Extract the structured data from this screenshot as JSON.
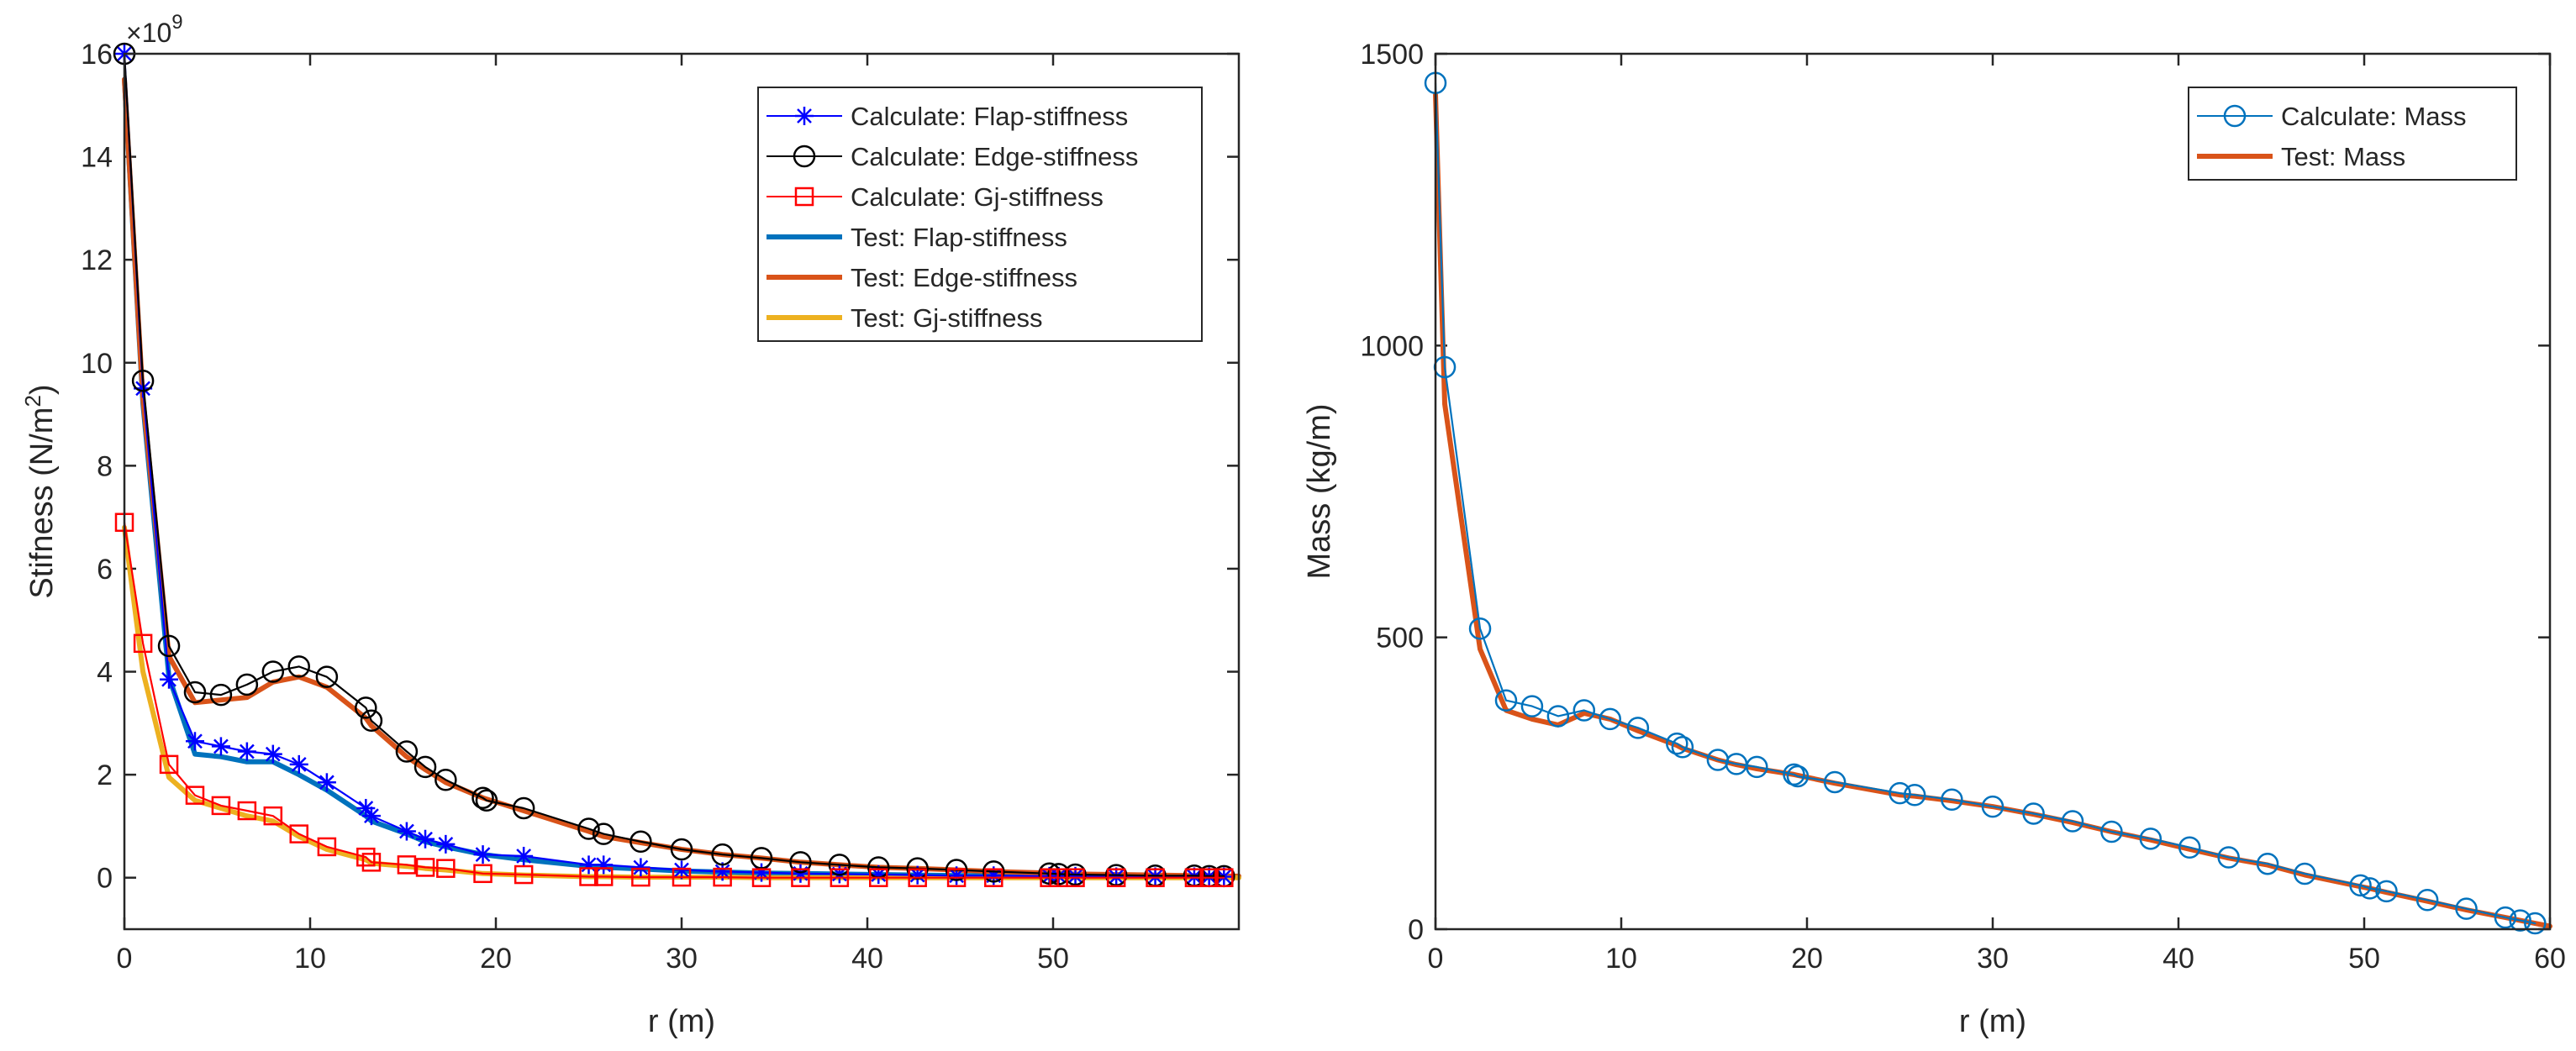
{
  "chart_data": [
    {
      "type": "line",
      "xlabel": "r (m)",
      "ylabel": "Stifness (N/m",
      "ylabel_superscript": "2",
      "ylabel_suffix": ")",
      "exponent_label": "×10",
      "exponent_power": "9",
      "xlim": [
        0,
        60
      ],
      "ylim": [
        -1,
        16
      ],
      "xticks": [
        0,
        10,
        20,
        30,
        40,
        50
      ],
      "yticks": [
        0,
        2,
        4,
        6,
        8,
        10,
        12,
        14,
        16
      ],
      "xtick_labels": [
        "0",
        "10",
        "20",
        "30",
        "40",
        "50"
      ],
      "ytick_labels": [
        "0",
        "2",
        "4",
        "6",
        "8",
        "10",
        "12",
        "14",
        "16"
      ],
      "legend_position": "top-right",
      "series": [
        {
          "name": "Calculate: Flap-stiffness",
          "color": "#0000ff",
          "marker": "asterisk",
          "line": "thin",
          "x": [
            0,
            1,
            2.4,
            3.8,
            5.2,
            6.6,
            8,
            9.4,
            10.9,
            13,
            13.3,
            15.2,
            16.2,
            17.3,
            19.3,
            21.5,
            25,
            25.8,
            27.8,
            30,
            32.2,
            34.3,
            36.4,
            38.5,
            40.6,
            42.7,
            44.8,
            46.8,
            49.8,
            50.3,
            51.2,
            53.4,
            55.5,
            57.6,
            58.4,
            59.2
          ],
          "y": [
            16,
            9.5,
            3.85,
            2.65,
            2.55,
            2.45,
            2.4,
            2.2,
            1.85,
            1.35,
            1.2,
            0.9,
            0.75,
            0.65,
            0.45,
            0.42,
            0.25,
            0.25,
            0.2,
            0.15,
            0.12,
            0.1,
            0.08,
            0.07,
            0.06,
            0.05,
            0.04,
            0.04,
            0.03,
            0.03,
            0.03,
            0.02,
            0.02,
            0.02,
            0.02,
            0.02
          ]
        },
        {
          "name": "Calculate: Edge-stiffness",
          "color": "#000000",
          "marker": "circle",
          "line": "thin",
          "x": [
            0,
            1,
            2.4,
            3.8,
            5.2,
            6.6,
            8,
            9.4,
            10.9,
            13,
            13.3,
            15.2,
            16.2,
            17.3,
            19.3,
            19.5,
            21.5,
            25,
            25.8,
            27.8,
            30,
            32.2,
            34.3,
            36.4,
            38.5,
            40.6,
            42.7,
            44.8,
            46.8,
            49.8,
            50.3,
            51.2,
            53.4,
            55.5,
            57.6,
            58.4,
            59.2
          ],
          "y": [
            16,
            9.65,
            4.5,
            3.6,
            3.55,
            3.75,
            4.0,
            4.1,
            3.9,
            3.3,
            3.05,
            2.45,
            2.15,
            1.9,
            1.55,
            1.5,
            1.35,
            0.95,
            0.85,
            0.7,
            0.55,
            0.45,
            0.38,
            0.3,
            0.25,
            0.2,
            0.18,
            0.15,
            0.12,
            0.08,
            0.07,
            0.06,
            0.05,
            0.04,
            0.04,
            0.03,
            0.03
          ]
        },
        {
          "name": "Calculate: Gj-stiffness",
          "color": "#ff0000",
          "marker": "square",
          "line": "thin",
          "x": [
            0,
            1,
            2.4,
            3.8,
            5.2,
            6.6,
            8,
            9.4,
            10.9,
            13,
            13.3,
            15.2,
            16.2,
            17.3,
            19.3,
            21.5,
            25,
            25.8,
            27.8,
            30,
            32.2,
            34.3,
            36.4,
            38.5,
            40.6,
            42.7,
            44.8,
            46.8,
            49.8,
            50.3,
            51.2,
            53.4,
            55.5,
            57.6,
            58.4,
            59.2
          ],
          "y": [
            6.9,
            4.55,
            2.2,
            1.6,
            1.4,
            1.3,
            1.2,
            0.85,
            0.6,
            0.4,
            0.3,
            0.25,
            0.2,
            0.18,
            0.08,
            0.06,
            0.02,
            0.02,
            0.01,
            0.01,
            0.01,
            0.0,
            0.0,
            0.0,
            0.0,
            0.0,
            0.0,
            0.0,
            0.0,
            0.0,
            0.0,
            0.0,
            0.0,
            0.0,
            0.0,
            0.0
          ]
        },
        {
          "name": "Test: Flap-stiffness",
          "color": "#0072bd",
          "marker": "none",
          "line": "thick",
          "x": [
            0,
            1,
            2.4,
            3.8,
            5.2,
            6.6,
            8,
            9.4,
            10.9,
            13,
            13.3,
            15.2,
            16.2,
            17.3,
            19.3,
            21.5,
            25,
            25.8,
            27.8,
            30,
            32.2,
            34.3,
            36.4,
            38.5,
            40.6,
            42.7,
            44.8,
            46.8,
            49.8,
            50.3,
            51.2,
            53.4,
            55.5,
            57.6,
            58.4,
            59.2,
            60
          ],
          "y": [
            15.5,
            9.2,
            3.9,
            2.4,
            2.35,
            2.25,
            2.25,
            2.0,
            1.7,
            1.2,
            1.1,
            0.85,
            0.7,
            0.6,
            0.45,
            0.35,
            0.22,
            0.2,
            0.17,
            0.13,
            0.11,
            0.09,
            0.08,
            0.07,
            0.06,
            0.05,
            0.04,
            0.04,
            0.03,
            0.03,
            0.03,
            0.02,
            0.02,
            0.02,
            0.02,
            0.02,
            0.02
          ]
        },
        {
          "name": "Test: Edge-stiffness",
          "color": "#d95319",
          "marker": "none",
          "line": "thick",
          "x": [
            0,
            1,
            2.4,
            3.8,
            5.2,
            6.6,
            8,
            9.4,
            10.9,
            13,
            13.3,
            15.2,
            16.2,
            17.3,
            19.3,
            21.5,
            25,
            25.8,
            27.8,
            30,
            32.2,
            34.3,
            36.4,
            38.5,
            40.6,
            42.7,
            44.8,
            46.8,
            49.8,
            50.3,
            51.2,
            53.4,
            55.5,
            57.6,
            58.4,
            59.2,
            60
          ],
          "y": [
            15.5,
            9.3,
            4.3,
            3.4,
            3.45,
            3.5,
            3.8,
            3.9,
            3.7,
            3.1,
            2.95,
            2.35,
            2.1,
            1.85,
            1.55,
            1.3,
            0.9,
            0.8,
            0.68,
            0.55,
            0.45,
            0.38,
            0.3,
            0.25,
            0.2,
            0.18,
            0.15,
            0.12,
            0.09,
            0.08,
            0.07,
            0.06,
            0.05,
            0.04,
            0.04,
            0.03,
            0.03
          ]
        },
        {
          "name": "Test: Gj-stiffness",
          "color": "#edb120",
          "marker": "none",
          "line": "thick",
          "x": [
            0,
            1,
            2.4,
            3.8,
            5.2,
            6.6,
            8,
            9.4,
            10.9,
            13,
            13.3,
            15.2,
            16.2,
            17.3,
            19.3,
            21.5,
            25,
            25.8,
            27.8,
            30,
            32.2,
            34.3,
            36.4,
            38.5,
            40.6,
            42.7,
            44.8,
            46.8,
            49.8,
            50.3,
            51.2,
            53.4,
            55.5,
            57.6,
            58.4,
            59.2,
            60
          ],
          "y": [
            6.8,
            4.0,
            1.95,
            1.5,
            1.35,
            1.2,
            1.1,
            0.8,
            0.55,
            0.35,
            0.28,
            0.22,
            0.18,
            0.15,
            0.08,
            0.05,
            0.02,
            0.02,
            0.01,
            0.01,
            0.01,
            0.0,
            0.0,
            0.0,
            0.0,
            0.0,
            0.0,
            0.0,
            0.0,
            0.0,
            0.0,
            0.0,
            0.0,
            0.0,
            0.0,
            0.0,
            0.0
          ]
        }
      ]
    },
    {
      "type": "line",
      "xlabel": "r (m)",
      "ylabel": "Mass (kg/m)",
      "xlim": [
        0,
        60
      ],
      "ylim": [
        0,
        1500
      ],
      "xticks": [
        0,
        10,
        20,
        30,
        40,
        50,
        60
      ],
      "yticks": [
        0,
        500,
        1000,
        1500
      ],
      "xtick_labels": [
        "0",
        "10",
        "20",
        "30",
        "40",
        "50",
        "60"
      ],
      "ytick_labels": [
        "0",
        "500",
        "1000",
        "1500"
      ],
      "legend_position": "top-right",
      "series": [
        {
          "name": "Calculate: Mass",
          "color": "#0072bd",
          "marker": "circle",
          "line": "thin",
          "x": [
            0,
            0.5,
            2.4,
            3.8,
            5.2,
            6.6,
            8,
            9.4,
            10.9,
            13,
            13.3,
            15.2,
            16.2,
            17.3,
            19.3,
            19.5,
            21.5,
            25,
            25.8,
            27.8,
            30,
            32.2,
            34.3,
            36.4,
            38.5,
            40.6,
            42.7,
            44.8,
            46.8,
            49.8,
            50.3,
            51.2,
            53.4,
            55.5,
            57.6,
            58.4,
            59.2
          ],
          "y": [
            1450,
            963,
            515,
            392,
            382,
            365,
            375,
            360,
            345,
            318,
            312,
            290,
            283,
            278,
            265,
            262,
            252,
            233,
            230,
            222,
            210,
            198,
            185,
            167,
            155,
            140,
            123,
            112,
            95,
            75,
            70,
            65,
            50,
            35,
            20,
            15,
            10
          ]
        },
        {
          "name": "Test: Mass",
          "color": "#d95319",
          "marker": "none",
          "line": "thick",
          "x": [
            0,
            0.5,
            2.4,
            3.8,
            5.2,
            6.6,
            8,
            9.4,
            10.9,
            13,
            13.3,
            15.2,
            16.2,
            17.3,
            19.3,
            21.5,
            25,
            25.8,
            27.8,
            30,
            32.2,
            34.3,
            36.4,
            38.5,
            40.6,
            42.7,
            44.8,
            46.8,
            49.8,
            50.3,
            51.2,
            53.4,
            55.5,
            57.6,
            58.4,
            59.2,
            60
          ],
          "y": [
            1430,
            900,
            480,
            375,
            360,
            350,
            370,
            360,
            340,
            315,
            310,
            290,
            282,
            275,
            265,
            250,
            230,
            228,
            220,
            210,
            197,
            183,
            167,
            153,
            137,
            122,
            110,
            93,
            73,
            70,
            63,
            48,
            33,
            20,
            15,
            10,
            5
          ]
        }
      ]
    }
  ]
}
